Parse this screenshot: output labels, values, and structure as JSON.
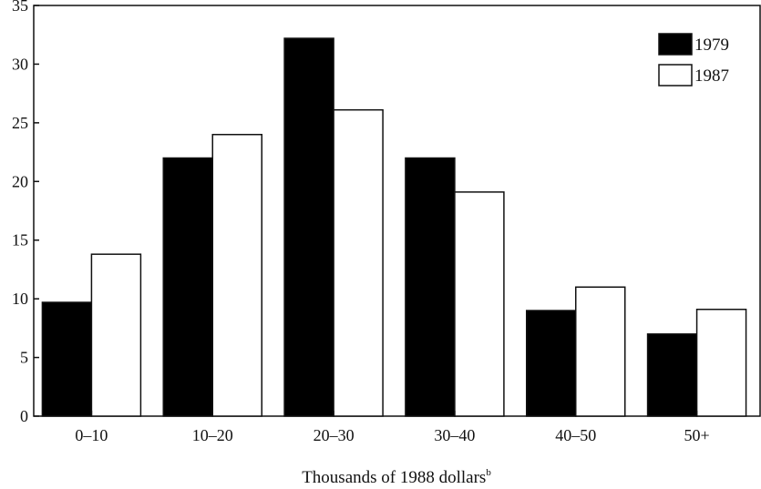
{
  "chart_data": {
    "type": "bar",
    "title": "",
    "xlabel": "Thousands of 1988 dollars",
    "xlabel_superscript": "b",
    "ylabel": "",
    "ylim": [
      0,
      35
    ],
    "yticks": [
      0,
      5,
      10,
      15,
      20,
      25,
      30,
      35
    ],
    "categories": [
      "0–10",
      "10–20",
      "20–30",
      "30–40",
      "40–50",
      "50+"
    ],
    "series": [
      {
        "name": "1979",
        "color": "#000000",
        "values": [
          9.7,
          22,
          32.2,
          22,
          9,
          7
        ]
      },
      {
        "name": "1987",
        "color": "#ffffff",
        "values": [
          13.8,
          24,
          26.1,
          19.1,
          11,
          9.1
        ]
      }
    ],
    "legend": "top-right",
    "grid": false
  }
}
